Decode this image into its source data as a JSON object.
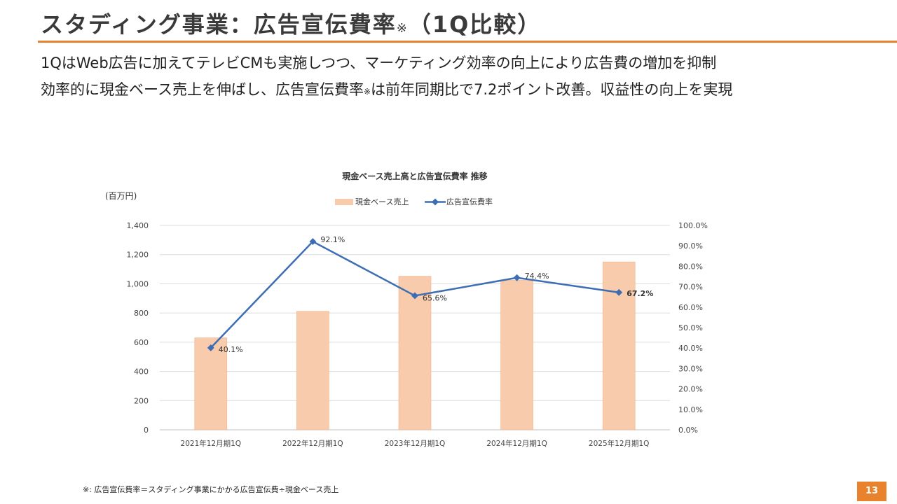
{
  "header": {
    "title": "スタディング事業：広告宣伝費率",
    "title_mark": "※",
    "title_suffix": "（1Q比較）"
  },
  "lead": {
    "line1": "1QはWeb広告に加えてテレビCMも実施しつつ、マーケティング効率の向上により広告費の増加を抑制",
    "line2_pre": "効率的に現金ベース売上を伸ばし、広告宣伝費率",
    "line2_mark": "※",
    "line2_post": "は前年同期比で7.2ポイント改善。収益性の向上を実現"
  },
  "footer": {
    "note": "※: 広告宣伝費率＝スタディング事業にかかる広告宣伝費÷現金ベース売上",
    "page": "13"
  },
  "chart_data": {
    "type": "bar",
    "title": "現金ベース売上高と広告宣伝費率 推移",
    "unit_label": "(百万円)",
    "categories": [
      "2021年12月期1Q",
      "2022年12月期1Q",
      "2023年12月期1Q",
      "2024年12月期1Q",
      "2025年12月期1Q"
    ],
    "series": [
      {
        "name": "現金ベース売上",
        "type": "bar",
        "axis": "left",
        "color": "#f7cbac",
        "values": [
          630,
          812,
          1052,
          1024,
          1150
        ]
      },
      {
        "name": "広告宣伝費率",
        "type": "line",
        "axis": "right",
        "color": "#3d6eb4",
        "values": [
          40.1,
          92.1,
          65.6,
          74.4,
          67.2
        ],
        "labels": [
          "40.1%",
          "92.1%",
          "65.6%",
          "74.4%",
          "67.2%"
        ]
      }
    ],
    "y_left": {
      "min": 0,
      "max": 1400,
      "ticks": [
        "0",
        "200",
        "400",
        "600",
        "800",
        "1,000",
        "1,200",
        "1,400"
      ]
    },
    "y_right": {
      "min": 0,
      "max": 100,
      "ticks": [
        "0.0%",
        "10.0%",
        "20.0%",
        "30.0%",
        "40.0%",
        "50.0%",
        "60.0%",
        "70.0%",
        "80.0%",
        "90.0%",
        "100.0%"
      ]
    },
    "grid": true,
    "legend_position": "top"
  }
}
